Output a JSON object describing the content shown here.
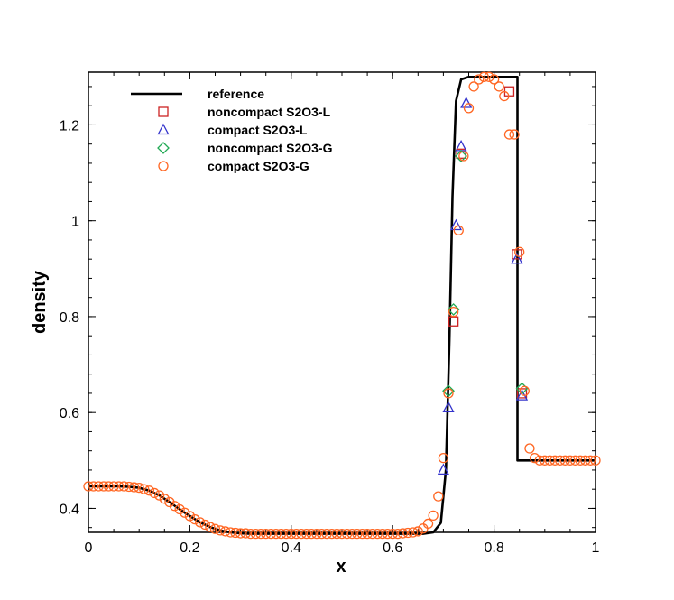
{
  "chart_data": {
    "type": "line",
    "xlabel": "x",
    "ylabel": "density",
    "xlim": [
      0,
      1
    ],
    "ylim": [
      0.35,
      1.31
    ],
    "xticks": [
      {
        "value": 0,
        "label": "0"
      },
      {
        "value": 0.2,
        "label": "0.2"
      },
      {
        "value": 0.4,
        "label": "0.4"
      },
      {
        "value": 0.6,
        "label": "0.6"
      },
      {
        "value": 0.8,
        "label": "0.8"
      },
      {
        "value": 1,
        "label": "1"
      }
    ],
    "yticks": [
      {
        "value": 0.4,
        "label": "0.4"
      },
      {
        "value": 0.6,
        "label": "0.6"
      },
      {
        "value": 0.8,
        "label": "0.8"
      },
      {
        "value": 1,
        "label": "1"
      },
      {
        "value": 1.2,
        "label": "1.2"
      }
    ],
    "legend_position": "top-left",
    "reference": {
      "name": "reference",
      "color": "#000000",
      "x": [
        0,
        0.02,
        0.04,
        0.06,
        0.08,
        0.1,
        0.12,
        0.14,
        0.16,
        0.18,
        0.2,
        0.22,
        0.24,
        0.26,
        0.28,
        0.3,
        0.32,
        0.34,
        0.4,
        0.5,
        0.6,
        0.66,
        0.68,
        0.695,
        0.705,
        0.712,
        0.718,
        0.725,
        0.735,
        0.75,
        0.8,
        0.846,
        0.846,
        0.85,
        0.9,
        0.95,
        1.0
      ],
      "y": [
        0.446,
        0.446,
        0.446,
        0.446,
        0.445,
        0.443,
        0.437,
        0.427,
        0.413,
        0.398,
        0.384,
        0.371,
        0.361,
        0.354,
        0.35,
        0.348,
        0.347,
        0.347,
        0.347,
        0.347,
        0.347,
        0.347,
        0.35,
        0.37,
        0.48,
        0.75,
        1.05,
        1.25,
        1.295,
        1.3,
        1.3,
        1.3,
        0.5,
        0.5,
        0.5,
        0.5,
        0.5
      ]
    },
    "series": [
      {
        "name": "noncompact S2O3-L",
        "marker": "square",
        "color": "#cc2222",
        "x": [
          0.72,
          0.735,
          0.83,
          0.845,
          0.855
        ],
        "y": [
          0.79,
          1.14,
          1.27,
          0.93,
          0.64
        ]
      },
      {
        "name": "compact S2O3-L",
        "marker": "triangle",
        "color": "#3333cc",
        "x": [
          0.7,
          0.71,
          0.725,
          0.735,
          0.745,
          0.845,
          0.855
        ],
        "y": [
          0.48,
          0.61,
          0.99,
          1.155,
          1.245,
          0.92,
          0.635
        ]
      },
      {
        "name": "noncompact S2O3-G",
        "marker": "diamond",
        "color": "#22aa55",
        "x": [
          0.71,
          0.72,
          0.735,
          0.855
        ],
        "y": [
          0.645,
          0.815,
          1.135,
          0.65
        ]
      },
      {
        "name": "compact S2O3-G",
        "marker": "circle",
        "color": "#ff6622",
        "x": [
          0,
          0.01,
          0.02,
          0.03,
          0.04,
          0.05,
          0.06,
          0.07,
          0.08,
          0.09,
          0.1,
          0.11,
          0.12,
          0.13,
          0.14,
          0.15,
          0.16,
          0.17,
          0.18,
          0.19,
          0.2,
          0.21,
          0.22,
          0.23,
          0.24,
          0.25,
          0.26,
          0.27,
          0.28,
          0.29,
          0.3,
          0.31,
          0.32,
          0.33,
          0.34,
          0.35,
          0.36,
          0.37,
          0.38,
          0.39,
          0.4,
          0.41,
          0.42,
          0.43,
          0.44,
          0.45,
          0.46,
          0.47,
          0.48,
          0.49,
          0.5,
          0.51,
          0.52,
          0.53,
          0.54,
          0.55,
          0.56,
          0.57,
          0.58,
          0.59,
          0.6,
          0.61,
          0.62,
          0.63,
          0.64,
          0.65,
          0.66,
          0.67,
          0.68,
          0.69,
          0.7,
          0.71,
          0.72,
          0.73,
          0.74,
          0.75,
          0.76,
          0.77,
          0.78,
          0.79,
          0.8,
          0.81,
          0.82,
          0.83,
          0.84,
          0.85,
          0.86,
          0.87,
          0.88,
          0.89,
          0.9,
          0.91,
          0.92,
          0.93,
          0.94,
          0.95,
          0.96,
          0.97,
          0.98,
          0.99,
          1.0
        ],
        "y": [
          0.446,
          0.446,
          0.446,
          0.446,
          0.446,
          0.446,
          0.446,
          0.446,
          0.445,
          0.444,
          0.443,
          0.44,
          0.437,
          0.432,
          0.427,
          0.42,
          0.413,
          0.405,
          0.398,
          0.391,
          0.384,
          0.377,
          0.371,
          0.366,
          0.361,
          0.357,
          0.354,
          0.352,
          0.35,
          0.349,
          0.348,
          0.348,
          0.347,
          0.347,
          0.347,
          0.347,
          0.347,
          0.347,
          0.347,
          0.347,
          0.347,
          0.347,
          0.347,
          0.347,
          0.347,
          0.347,
          0.347,
          0.347,
          0.347,
          0.347,
          0.347,
          0.347,
          0.347,
          0.347,
          0.347,
          0.347,
          0.347,
          0.347,
          0.347,
          0.347,
          0.347,
          0.347,
          0.348,
          0.349,
          0.35,
          0.352,
          0.358,
          0.368,
          0.385,
          0.425,
          0.505,
          0.64,
          0.81,
          0.98,
          1.135,
          1.235,
          1.28,
          1.295,
          1.3,
          1.3,
          1.295,
          1.28,
          1.26,
          1.18,
          1.18,
          0.935,
          0.645,
          0.525,
          0.505,
          0.5,
          0.5,
          0.5,
          0.5,
          0.5,
          0.5,
          0.5,
          0.5,
          0.5,
          0.5,
          0.5,
          0.5
        ]
      }
    ]
  }
}
